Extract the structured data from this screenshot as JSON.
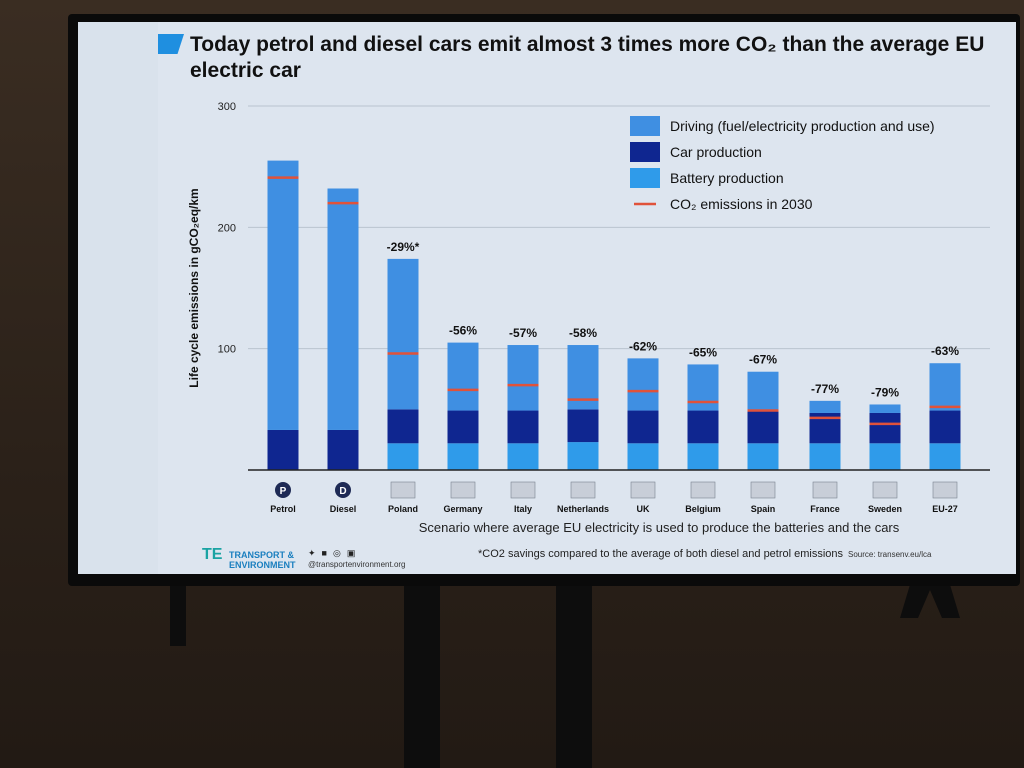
{
  "slide": {
    "title": "Today petrol and diesel cars emit almost 3 times more CO₂ than the average EU electric car",
    "footnote": "*CO2 savings compared to the average of both diesel and petrol emissions",
    "source": "Source: transenv.eu/lca",
    "logo_text_1": "TRANSPORT &",
    "logo_text_2": "ENVIRONMENT",
    "logo_handle": "@transportenvironment.org",
    "social_icons": [
      "twitter-icon",
      "facebook-icon",
      "instagram-icon",
      "linkedin-icon"
    ]
  },
  "chart_data": {
    "type": "bar",
    "stacked": true,
    "title": "Today petrol and diesel cars emit almost 3 times more CO₂ than the average EU electric car",
    "ylabel": "Life cycle emissions in gCO₂eq/km",
    "xlabel": "Scenario where  average EU electricity is used to produce the batteries and the cars",
    "ylim": [
      0,
      300
    ],
    "yticks": [
      100,
      200,
      300
    ],
    "grid": true,
    "legend_position": "top-right",
    "categories": [
      "Petrol",
      "Diesel",
      "Poland",
      "Germany",
      "Italy",
      "Netherlands",
      "UK",
      "Belgium",
      "Spain",
      "France",
      "Sweden",
      "EU-27"
    ],
    "category_badges": [
      "P",
      "D",
      "",
      "",
      "",
      "",
      "",
      "",
      "",
      "",
      "",
      ""
    ],
    "series": [
      {
        "name": "Battery production",
        "color": "#2f9bea",
        "values": [
          0,
          0,
          22,
          22,
          22,
          23,
          22,
          22,
          22,
          22,
          22,
          22
        ]
      },
      {
        "name": "Car production",
        "color": "#0f2690",
        "values": [
          33,
          33,
          28,
          27,
          27,
          27,
          27,
          27,
          27,
          25,
          25,
          27
        ]
      },
      {
        "name": "Driving (fuel/electricity production and use)",
        "color": "#3f8fe2",
        "values": [
          222,
          199,
          124,
          56,
          54,
          53,
          43,
          38,
          32,
          10,
          7,
          39
        ]
      }
    ],
    "co2_2030_label": "CO₂ emissions in 2030",
    "co2_2030": [
      241,
      220,
      96,
      66,
      70,
      58,
      65,
      56,
      49,
      43,
      38,
      52
    ],
    "bar_labels": [
      "",
      "",
      "-29%*",
      "-56%",
      "-57%",
      "-58%",
      "-62%",
      "-65%",
      "-67%",
      "-77%",
      "-79%",
      "-63%"
    ],
    "legend_order": [
      "Driving (fuel/electricity production and use)",
      "Car production",
      "Battery production",
      "CO₂ emissions in 2030"
    ]
  }
}
